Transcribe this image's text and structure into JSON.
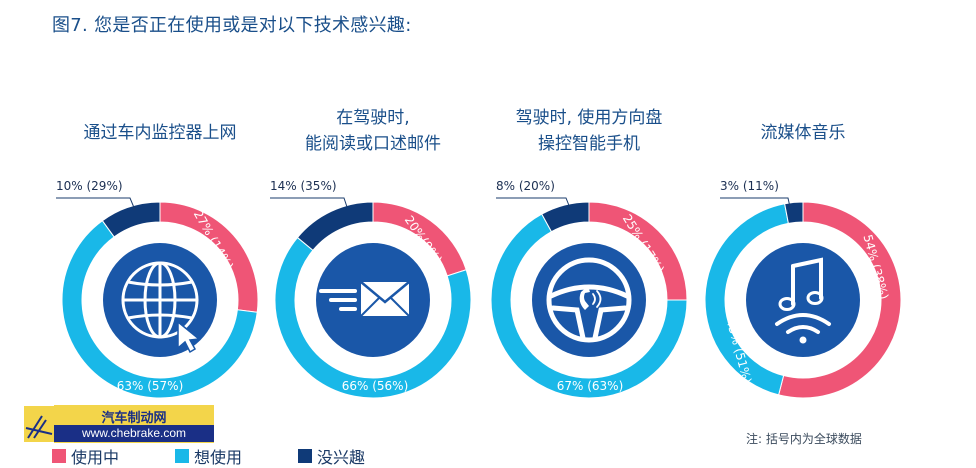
{
  "title": "图7. 您是否正在使用或是对以下技术感兴趣:",
  "colors": {
    "using": "#ef5576",
    "want": "#19b8e8",
    "no_interest": "#0f3a78",
    "title": "#1a4f8a"
  },
  "panels": [
    {
      "title_lines": [
        "通过车内监控器上网"
      ],
      "icon": "globe-cursor-icon"
    },
    {
      "title_lines": [
        "在驾驶时,",
        "能阅读或口述邮件"
      ],
      "icon": "envelope-icon"
    },
    {
      "title_lines": [
        "驾驶时, 使用方向盘",
        "操控智能手机"
      ],
      "icon": "steering-wheel-phone-icon"
    },
    {
      "title_lines": [
        "流媒体音乐"
      ],
      "icon": "music-note-wifi-icon"
    }
  ],
  "chart_data": [
    {
      "type": "pie",
      "title": "通过车内监控器上网",
      "categories": [
        "使用中",
        "想使用",
        "没兴趣"
      ],
      "values": [
        27,
        63,
        10
      ],
      "global_values": [
        14,
        57,
        29
      ],
      "labels": [
        "27% (14%)",
        "63% (57%)",
        "10% (29%)"
      ]
    },
    {
      "type": "pie",
      "title": "在驾驶时, 能阅读或口述邮件",
      "categories": [
        "使用中",
        "想使用",
        "没兴趣"
      ],
      "values": [
        20,
        66,
        14
      ],
      "global_values": [
        9,
        56,
        35
      ],
      "labels": [
        "20%(9%)",
        "66% (56%)",
        "14% (35%)"
      ]
    },
    {
      "type": "pie",
      "title": "驾驶时, 使用方向盘操控智能手机",
      "categories": [
        "使用中",
        "想使用",
        "没兴趣"
      ],
      "values": [
        25,
        67,
        8
      ],
      "global_values": [
        17,
        63,
        20
      ],
      "labels": [
        "25% (17%)",
        "67% (63%)",
        "8% (20%)"
      ]
    },
    {
      "type": "pie",
      "title": "流媒体音乐",
      "categories": [
        "使用中",
        "想使用",
        "没兴趣"
      ],
      "values": [
        54,
        43,
        3
      ],
      "global_values": [
        38,
        51,
        11
      ],
      "labels": [
        "54% (38%)",
        "43% (51%)",
        "3% (11%)"
      ]
    }
  ],
  "legend": [
    {
      "label": "使用中",
      "color": "#ef5576"
    },
    {
      "label": "想使用",
      "color": "#19b8e8"
    },
    {
      "label": "没兴趣",
      "color": "#0f3a78"
    }
  ],
  "note": "注: 括号内为全球数据",
  "watermark": {
    "line1": "汽车制动网",
    "line2": "www.chebrake.com"
  }
}
